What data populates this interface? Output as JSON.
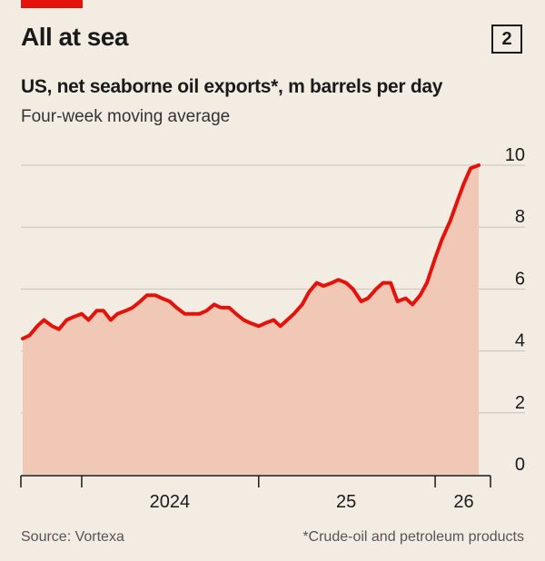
{
  "header": {
    "title": "All at sea",
    "badge": "2",
    "subtitle": "US, net seaborne oil exports*, m barrels per day",
    "subsubtitle": "Four-week moving average",
    "accent_color": "#e3120b"
  },
  "footer": {
    "source": "Source: Vortexa",
    "note": "*Crude-oil and petroleum products"
  },
  "chart_data": {
    "type": "area",
    "title": "US, net seaborne oil exports*, m barrels per day",
    "subtitle": "Four-week moving average",
    "ylim": [
      0,
      10
    ],
    "yticks": [
      0,
      2,
      4,
      6,
      8,
      10
    ],
    "xlim": [
      "2023-09-01",
      "2026-04-01"
    ],
    "xtick_labels": [
      {
        "label": "2024",
        "date": "2024-07-01"
      },
      {
        "label": "25",
        "date": "2025-07-01"
      },
      {
        "label": "26",
        "date": "2026-03-01"
      }
    ],
    "x_boundaries": [
      "2024-01-01",
      "2025-01-01",
      "2026-01-01"
    ],
    "grid": true,
    "line_color": "#e3120b",
    "fill_color": "#f1c8b5",
    "series": [
      {
        "x": [
          "2023-09-01",
          "2023-09-15",
          "2023-10-01",
          "2023-10-15",
          "2023-11-01",
          "2023-11-15",
          "2023-12-01",
          "2023-12-15",
          "2024-01-01",
          "2024-01-15",
          "2024-02-01",
          "2024-02-15",
          "2024-03-01",
          "2024-03-15",
          "2024-04-01",
          "2024-04-15",
          "2024-05-01",
          "2024-05-15",
          "2024-06-01",
          "2024-06-15",
          "2024-07-01",
          "2024-07-15",
          "2024-08-01",
          "2024-08-15",
          "2024-09-01",
          "2024-09-15",
          "2024-10-01",
          "2024-10-15",
          "2024-11-01",
          "2024-11-15",
          "2024-12-01",
          "2024-12-15",
          "2025-01-01",
          "2025-01-15",
          "2025-02-01",
          "2025-02-15",
          "2025-03-01",
          "2025-03-15",
          "2025-04-01",
          "2025-04-15",
          "2025-05-01",
          "2025-05-15",
          "2025-06-01",
          "2025-06-15",
          "2025-07-01",
          "2025-07-15",
          "2025-08-01",
          "2025-08-15",
          "2025-09-01",
          "2025-09-15",
          "2025-10-01",
          "2025-10-15",
          "2025-11-01",
          "2025-11-15",
          "2025-12-01",
          "2025-12-15",
          "2026-01-01",
          "2026-01-15",
          "2026-02-01",
          "2026-02-15",
          "2026-03-01",
          "2026-03-15",
          "2026-04-01"
        ],
        "values": [
          4.4,
          4.5,
          4.8,
          5.0,
          4.8,
          4.7,
          5.0,
          5.1,
          5.2,
          5.0,
          5.3,
          5.3,
          5.0,
          5.2,
          5.3,
          5.4,
          5.6,
          5.8,
          5.8,
          5.7,
          5.6,
          5.4,
          5.2,
          5.2,
          5.2,
          5.3,
          5.5,
          5.4,
          5.4,
          5.2,
          5.0,
          4.9,
          4.8,
          4.9,
          5.0,
          4.8,
          5.0,
          5.2,
          5.5,
          5.9,
          6.2,
          6.1,
          6.2,
          6.3,
          6.2,
          6.0,
          5.6,
          5.7,
          6.0,
          6.2,
          6.2,
          5.6,
          5.7,
          5.5,
          5.8,
          6.2,
          7.0,
          7.6,
          8.2,
          8.8,
          9.4,
          9.9,
          10.0
        ]
      }
    ]
  }
}
